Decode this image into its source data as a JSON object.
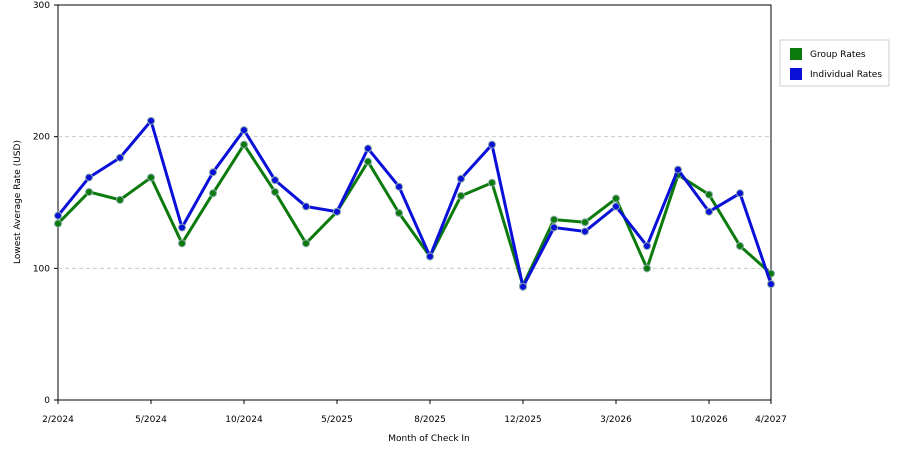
{
  "chart_data": {
    "type": "line",
    "x_label": "Month of Check In",
    "y_label": "Lowest Average Rate (USD)",
    "categories": [
      "2/2024",
      null,
      null,
      "5/2024",
      null,
      null,
      "10/2024",
      null,
      null,
      "5/2025",
      null,
      null,
      "8/2025",
      null,
      null,
      "12/2025",
      null,
      null,
      "3/2026",
      null,
      null,
      "10/2026",
      null,
      "4/2027"
    ],
    "series": [
      {
        "name": "Group Rates",
        "color": "#0d7a0d",
        "values": [
          134,
          158,
          152,
          169,
          119,
          157,
          194,
          158,
          119,
          143,
          181,
          142,
          109,
          155,
          165,
          87,
          137,
          135,
          153,
          100,
          171,
          156,
          117,
          96
        ]
      },
      {
        "name": "Individual Rates",
        "color": "#0a10d8",
        "values": [
          140,
          169,
          184,
          212,
          131,
          173,
          205,
          167,
          147,
          143,
          191,
          162,
          109,
          168,
          194,
          86,
          131,
          128,
          147,
          117,
          175,
          143,
          157,
          88
        ]
      }
    ],
    "ylim": [
      0,
      300
    ],
    "yticks": [
      0,
      100,
      200,
      300
    ],
    "grid": true,
    "legend": "right"
  }
}
